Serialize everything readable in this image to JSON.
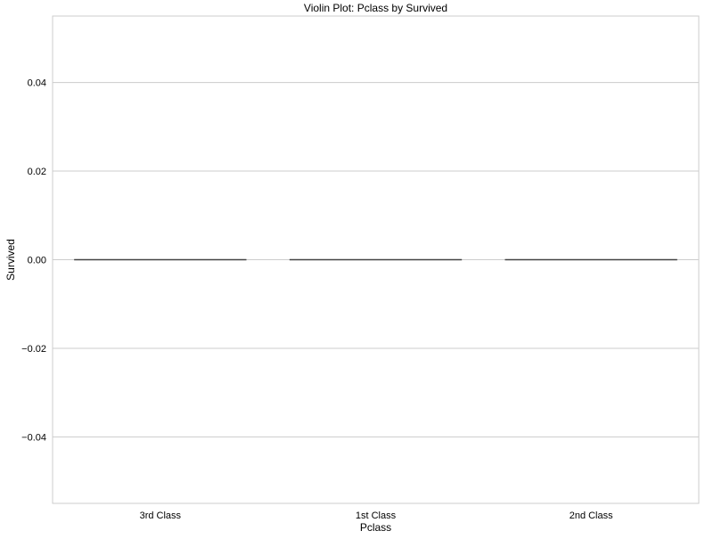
{
  "chart_data": {
    "type": "violin",
    "title": "Violin Plot: Pclass by Survived",
    "xlabel": "Pclass",
    "ylabel": "Survived",
    "categories": [
      "3rd Class",
      "1st Class",
      "2nd Class"
    ],
    "values": [
      0,
      0,
      0
    ],
    "ylim": [
      -0.055,
      0.055
    ],
    "yticks": [
      -0.04,
      -0.02,
      0.0,
      0.02,
      0.04
    ],
    "ytick_labels": [
      "−0.04",
      "−0.02",
      "0.00",
      "0.02",
      "0.04"
    ],
    "grid": "horizontal",
    "legend": "none",
    "colors": {
      "grid": "#cccccc",
      "spine": "#cccccc",
      "violin_line": "#444444",
      "background": "#ffffff"
    }
  }
}
